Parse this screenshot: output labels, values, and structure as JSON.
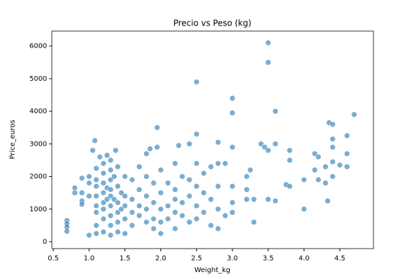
{
  "chart_data": {
    "type": "scatter",
    "title": "Precio vs Peso (kg)",
    "x_label": "Weight_kg",
    "y_label": "Price_euros",
    "color": "#1f77b4",
    "x": [
      0.69,
      0.69,
      0.69,
      0.69,
      0.8,
      0.8,
      0.9,
      0.9,
      0.9,
      0.9,
      1.0,
      1.0,
      1.0,
      1.0,
      1.05,
      1.08,
      1.1,
      1.1,
      1.1,
      1.1,
      1.1,
      1.1,
      1.1,
      1.1,
      1.15,
      1.2,
      1.2,
      1.2,
      1.2,
      1.2,
      1.2,
      1.2,
      1.2,
      1.25,
      1.25,
      1.25,
      1.3,
      1.3,
      1.3,
      1.3,
      1.3,
      1.3,
      1.3,
      1.3,
      1.3,
      1.35,
      1.35,
      1.37,
      1.4,
      1.4,
      1.4,
      1.4,
      1.4,
      1.4,
      1.45,
      1.45,
      1.5,
      1.5,
      1.5,
      1.5,
      1.5,
      1.6,
      1.6,
      1.6,
      1.6,
      1.7,
      1.7,
      1.7,
      1.7,
      1.8,
      1.8,
      1.8,
      1.8,
      1.8,
      1.85,
      1.9,
      1.9,
      1.9,
      1.9,
      1.95,
      1.95,
      2.0,
      2.0,
      2.0,
      2.0,
      2.0,
      2.1,
      2.1,
      2.1,
      2.2,
      2.2,
      2.2,
      2.2,
      2.2,
      2.25,
      2.3,
      2.3,
      2.3,
      2.4,
      2.4,
      2.4,
      2.4,
      2.5,
      2.5,
      2.5,
      2.5,
      2.5,
      2.5,
      2.6,
      2.6,
      2.6,
      2.7,
      2.7,
      2.7,
      2.8,
      2.8,
      2.8,
      2.8,
      2.8,
      2.9,
      2.9,
      3.0,
      3.0,
      3.0,
      3.0,
      3.0,
      3.0,
      3.2,
      3.2,
      3.2,
      3.25,
      3.3,
      3.3,
      3.4,
      3.45,
      3.5,
      3.5,
      3.5,
      3.5,
      3.6,
      3.6,
      3.6,
      3.75,
      3.8,
      3.8,
      3.8,
      4.0,
      4.0,
      4.15,
      4.15,
      4.2,
      4.2,
      4.3,
      4.3,
      4.33,
      4.35,
      4.4,
      4.4,
      4.4,
      4.4,
      4.4,
      4.5,
      4.6,
      4.6,
      4.6,
      4.7
    ],
    "y": [
      650,
      550,
      450,
      320,
      1650,
      1500,
      1950,
      1250,
      1150,
      1500,
      1400,
      2000,
      1800,
      200,
      2800,
      3100,
      2250,
      1900,
      1700,
      1400,
      1100,
      900,
      500,
      250,
      2600,
      2400,
      2100,
      1800,
      1500,
      1200,
      1000,
      700,
      300,
      2650,
      1650,
      1300,
      2500,
      2200,
      1900,
      1600,
      1400,
      1100,
      800,
      500,
      200,
      2000,
      1300,
      2800,
      2300,
      1700,
      1200,
      900,
      600,
      300,
      1500,
      1000,
      2000,
      1400,
      1100,
      700,
      250,
      1900,
      1300,
      900,
      500,
      1600,
      1100,
      800,
      2300,
      2700,
      2000,
      1400,
      1000,
      600,
      2850,
      1800,
      1200,
      700,
      400,
      3500,
      2900,
      2200,
      1500,
      1000,
      600,
      250,
      1800,
      1100,
      700,
      2400,
      1600,
      1300,
      900,
      400,
      2950,
      2000,
      1200,
      800,
      3000,
      1900,
      1400,
      600,
      4900,
      3300,
      2400,
      1700,
      1100,
      700,
      2100,
      1500,
      900,
      2300,
      1300,
      500,
      3050,
      2400,
      1700,
      1000,
      400,
      2400,
      800,
      4400,
      3950,
      2900,
      1700,
      1200,
      900,
      2000,
      1600,
      1300,
      2200,
      1300,
      600,
      3000,
      2900,
      6100,
      5500,
      2800,
      1300,
      4000,
      3000,
      1250,
      1750,
      2800,
      2500,
      1700,
      1900,
      1000,
      2700,
      2200,
      2600,
      1900,
      2300,
      1800,
      1250,
      3650,
      3600,
      3150,
      2900,
      2450,
      2000,
      2350,
      3250,
      2700,
      2300,
      3900
    ],
    "xlim": [
      0.48,
      4.97
    ],
    "ylim": [
      -212,
      6460
    ],
    "xticks": [
      0.5,
      {
        "value": 1,
        "label": "1.0"
      },
      1.5,
      {
        "value": 2,
        "label": "2.0"
      },
      2.5,
      {
        "value": 3,
        "label": "3.0"
      },
      3.5,
      {
        "value": 4,
        "label": "4.0"
      },
      4.5
    ],
    "yticks": [
      0,
      1000,
      2000,
      3000,
      4000,
      5000,
      6000
    ]
  }
}
